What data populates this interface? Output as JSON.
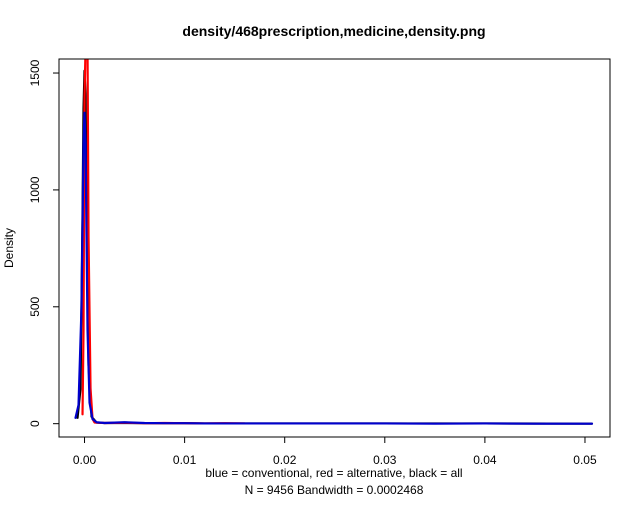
{
  "chart_data": {
    "type": "line",
    "title": "density/468prescription,medicine,density.png",
    "xlabel": "blue = conventional, red = alternative, black = all",
    "subxlabel": "N = 9456   Bandwidth = 0.0002468",
    "ylabel": "Density",
    "xlim": [
      -0.00255,
      0.0525
    ],
    "ylim": [
      -57,
      1560
    ],
    "x_ticks": [
      0.0,
      0.01,
      0.02,
      0.03,
      0.04,
      0.05
    ],
    "x_tick_labels": [
      "0.00",
      "0.01",
      "0.02",
      "0.03",
      "0.04",
      "0.05"
    ],
    "y_ticks": [
      0,
      500,
      1000,
      1500
    ],
    "y_tick_labels": [
      "0",
      "500",
      "1000",
      "1500"
    ],
    "grid": false,
    "series": [
      {
        "name": "all",
        "color": "#000000",
        "x": [
          -0.0007,
          -0.0004,
          -0.0002,
          -0.0001,
          0.0,
          0.0001,
          0.0002,
          0.0004,
          0.0007,
          0.0012,
          0.002,
          0.004,
          0.006,
          0.008,
          0.01,
          0.012,
          0.014,
          0.016,
          0.02,
          0.03,
          0.04,
          0.0507
        ],
        "y": [
          25,
          150,
          900,
          1350,
          1510,
          1400,
          1000,
          250,
          30,
          5,
          3,
          3,
          2,
          2,
          2,
          1,
          1,
          1,
          1,
          1,
          1,
          0
        ]
      },
      {
        "name": "alternative",
        "color": "#ff0000",
        "x": [
          -0.0002,
          -0.0001,
          0.0,
          0.0001,
          0.0002,
          0.0003,
          0.0004,
          0.0006,
          0.0008,
          0.001,
          0.002,
          0.004,
          0.006,
          0.008,
          0.01,
          0.012,
          0.014,
          0.016
        ],
        "y": [
          40,
          400,
          1400,
          1600,
          1600,
          1600,
          800,
          150,
          20,
          5,
          3,
          4,
          2,
          3,
          2,
          1,
          2,
          1
        ]
      },
      {
        "name": "conventional",
        "color": "#0000cc",
        "x": [
          -0.0009,
          -0.0006,
          -0.0003,
          -0.0001,
          0.0,
          0.0001,
          0.0002,
          0.0003,
          0.0005,
          0.0008,
          0.0012,
          0.002,
          0.004,
          0.006,
          0.008,
          0.01,
          0.012,
          0.014,
          0.016,
          0.02,
          0.025,
          0.03,
          0.035,
          0.04,
          0.045,
          0.0507
        ],
        "y": [
          25,
          80,
          500,
          1200,
          1330,
          1200,
          800,
          400,
          90,
          20,
          6,
          3,
          6,
          3,
          2,
          2,
          1,
          1,
          1,
          1,
          1,
          1,
          0,
          1,
          0,
          0
        ]
      }
    ]
  }
}
